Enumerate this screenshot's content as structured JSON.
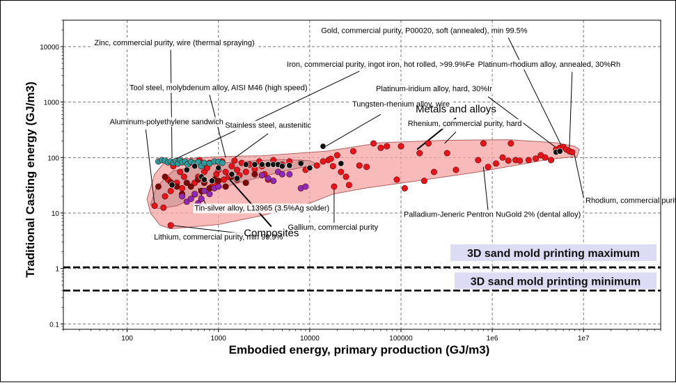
{
  "chart_data": {
    "type": "scatter",
    "xlabel": "Embodied energy, primary production (GJ/m3)",
    "ylabel": "Traditional Casting energy (GJ/m3)",
    "xscale": "log",
    "yscale": "log",
    "xlim": [
      20,
      70000000
    ],
    "ylim": [
      0.08,
      30000
    ],
    "x_ticks": [
      {
        "v": 100,
        "label": "100"
      },
      {
        "v": 1000,
        "label": "1000"
      },
      {
        "v": 10000,
        "label": "10000"
      },
      {
        "v": 100000,
        "label": "100000"
      },
      {
        "v": 1000000,
        "label": "1e6"
      },
      {
        "v": 10000000,
        "label": "1e7"
      }
    ],
    "y_ticks": [
      {
        "v": 0.1,
        "label": "0.1"
      },
      {
        "v": 1,
        "label": "1"
      },
      {
        "v": 10,
        "label": "10"
      },
      {
        "v": 100,
        "label": "100"
      },
      {
        "v": 1000,
        "label": "1000"
      },
      {
        "v": 10000,
        "label": "10000"
      }
    ],
    "grid": true,
    "colors": {
      "metal": "#e8141c",
      "dark_metal": "#7a0a0a",
      "teal": "#2a9d9d",
      "purple": "#8e2bb8",
      "black": "#111111",
      "envelope_fill": "#f7a3a3",
      "envelope_stroke": "#b06060",
      "composite_fill": "#c98f8f",
      "label_bg": "#dcdcf4"
    },
    "reference_lines": [
      {
        "label": "3D sand mold printing maximum",
        "y": 1.05
      },
      {
        "label": "3D sand mold printing minimum",
        "y": 0.4
      }
    ],
    "envelopes": [
      {
        "name": "Metals and alloys",
        "label_at": [
          400000,
          650
        ],
        "pointer_to": [
          150000,
          140
        ],
        "polygon": [
          [
            180,
            10
          ],
          [
            165,
            18
          ],
          [
            200,
            50
          ],
          [
            250,
            78
          ],
          [
            400,
            95
          ],
          [
            1200,
            105
          ],
          [
            3000,
            108
          ],
          [
            15000,
            130
          ],
          [
            60000,
            185
          ],
          [
            300000,
            205
          ],
          [
            1500000,
            210
          ],
          [
            5000000,
            185
          ],
          [
            8000000,
            160
          ],
          [
            9000000,
            140
          ],
          [
            8500000,
            105
          ],
          [
            4000000,
            92
          ],
          [
            700000,
            55
          ],
          [
            150000,
            38
          ],
          [
            40000,
            28
          ],
          [
            18000,
            22
          ],
          [
            10000,
            15
          ],
          [
            3000,
            9
          ],
          [
            1000,
            6.2
          ],
          [
            300,
            5.2
          ],
          [
            230,
            6
          ]
        ]
      },
      {
        "name": "Composites",
        "label_at": [
          3800,
          3.8
        ],
        "pointer_to": [
          1250,
          45
        ],
        "polygon": [
          [
            180,
            14
          ],
          [
            210,
            30
          ],
          [
            320,
            58
          ],
          [
            900,
            78
          ],
          [
            2500,
            88
          ],
          [
            5000,
            92
          ],
          [
            10000,
            88
          ],
          [
            12000,
            76
          ],
          [
            5000,
            56
          ],
          [
            2000,
            38
          ],
          [
            800,
            25
          ],
          [
            350,
            13.5
          ],
          [
            220,
            12
          ]
        ]
      }
    ],
    "series": [
      {
        "name": "",
        "color": "metal",
        "points": [
          [
            200,
            13.5
          ],
          [
            250,
            12.5
          ],
          [
            300,
            6
          ],
          [
            260,
            20
          ],
          [
            300,
            25
          ],
          [
            350,
            35
          ],
          [
            280,
            40
          ],
          [
            320,
            70
          ],
          [
            380,
            55
          ],
          [
            400,
            28
          ],
          [
            420,
            45
          ],
          [
            450,
            60
          ],
          [
            500,
            80
          ],
          [
            550,
            35
          ],
          [
            600,
            45
          ],
          [
            620,
            90
          ],
          [
            700,
            55
          ],
          [
            750,
            65
          ],
          [
            800,
            80
          ],
          [
            850,
            30
          ],
          [
            900,
            35
          ],
          [
            950,
            50
          ],
          [
            1000,
            60
          ],
          [
            1100,
            85
          ],
          [
            1150,
            40
          ],
          [
            1200,
            55
          ],
          [
            1300,
            45
          ],
          [
            1400,
            70
          ],
          [
            1500,
            88
          ],
          [
            1600,
            60
          ],
          [
            1700,
            48
          ],
          [
            1800,
            80
          ],
          [
            2000,
            55
          ],
          [
            2200,
            75
          ],
          [
            2500,
            62
          ],
          [
            2800,
            85
          ],
          [
            3000,
            70
          ],
          [
            3200,
            50
          ],
          [
            3500,
            40
          ],
          [
            4000,
            90
          ],
          [
            5000,
            75
          ],
          [
            6000,
            85
          ],
          [
            8000,
            80
          ],
          [
            9000,
            60
          ],
          [
            12000,
            72
          ],
          [
            14000,
            85
          ],
          [
            16000,
            90
          ],
          [
            17000,
            95
          ],
          [
            18000,
            70
          ],
          [
            20000,
            110
          ],
          [
            22000,
            55
          ],
          [
            25000,
            45
          ],
          [
            27000,
            32
          ],
          [
            18500,
            30
          ],
          [
            30000,
            130
          ],
          [
            35000,
            72
          ],
          [
            42000,
            68
          ],
          [
            50000,
            180
          ],
          [
            60000,
            150
          ],
          [
            70000,
            160
          ],
          [
            90000,
            40
          ],
          [
            100000,
            160
          ],
          [
            110000,
            28
          ],
          [
            160000,
            120
          ],
          [
            180000,
            38
          ],
          [
            200000,
            180
          ],
          [
            230000,
            55
          ],
          [
            320000,
            120
          ],
          [
            400000,
            60
          ],
          [
            700000,
            90
          ],
          [
            800000,
            180
          ],
          [
            900000,
            68
          ],
          [
            1100000,
            78
          ],
          [
            1300000,
            100
          ],
          [
            1500000,
            88
          ],
          [
            1600000,
            180
          ],
          [
            1800000,
            90
          ],
          [
            2000000,
            88
          ],
          [
            2500000,
            90
          ],
          [
            3000000,
            96
          ],
          [
            3400000,
            110
          ],
          [
            3800000,
            100
          ],
          [
            4400000,
            90
          ],
          [
            5000000,
            140
          ],
          [
            5500000,
            150
          ],
          [
            6000000,
            155
          ],
          [
            6500000,
            140
          ],
          [
            7000000,
            130
          ],
          [
            7500000,
            125
          ]
        ]
      },
      {
        "name": "",
        "color": "dark_metal",
        "points": [
          [
            220,
            30
          ],
          [
            260,
            45
          ],
          [
            300,
            36
          ],
          [
            350,
            30
          ],
          [
            400,
            22
          ],
          [
            450,
            35
          ],
          [
            500,
            30
          ],
          [
            550,
            22
          ],
          [
            600,
            40
          ],
          [
            650,
            25
          ],
          [
            700,
            35
          ],
          [
            800,
            28
          ],
          [
            900,
            40
          ],
          [
            1000,
            38
          ],
          [
            1200,
            30
          ],
          [
            1400,
            45
          ],
          [
            1600,
            40
          ],
          [
            2000,
            35
          ],
          [
            2500,
            50
          ],
          [
            3000,
            48
          ]
        ]
      },
      {
        "name": "",
        "color": "teal",
        "points": [
          [
            220,
            85
          ],
          [
            240,
            90
          ],
          [
            260,
            88
          ],
          [
            280,
            82
          ],
          [
            300,
            85
          ],
          [
            320,
            80
          ],
          [
            340,
            86
          ],
          [
            360,
            78
          ],
          [
            380,
            90
          ],
          [
            400,
            82
          ],
          [
            430,
            85
          ],
          [
            460,
            76
          ],
          [
            500,
            84
          ],
          [
            550,
            80
          ],
          [
            600,
            83
          ],
          [
            650,
            70
          ],
          [
            700,
            80
          ],
          [
            800,
            78
          ],
          [
            900,
            85
          ],
          [
            1000,
            84
          ],
          [
            1100,
            80
          ]
        ]
      },
      {
        "name": "",
        "color": "purple",
        "points": [
          [
            400,
            20
          ],
          [
            450,
            16
          ],
          [
            500,
            18
          ],
          [
            550,
            22
          ],
          [
            600,
            15
          ],
          [
            650,
            18
          ],
          [
            700,
            25
          ],
          [
            800,
            22
          ],
          [
            900,
            28
          ],
          [
            1000,
            30
          ],
          [
            3000,
            48
          ],
          [
            3500,
            42
          ],
          [
            4000,
            38
          ],
          [
            4500,
            55
          ],
          [
            5000,
            50
          ],
          [
            6000,
            50
          ],
          [
            8000,
            28
          ],
          [
            9000,
            30
          ]
        ]
      },
      {
        "name": "",
        "color": "black",
        "points": [
          [
            310,
            32
          ],
          [
            450,
            60
          ],
          [
            550,
            70
          ],
          [
            650,
            45
          ],
          [
            700,
            40
          ],
          [
            850,
            38
          ],
          [
            1000,
            65
          ],
          [
            1400,
            50
          ],
          [
            1600,
            42
          ],
          [
            2000,
            75
          ],
          [
            2500,
            75
          ],
          [
            3000,
            75
          ],
          [
            3500,
            75
          ],
          [
            4000,
            75
          ],
          [
            4500,
            75
          ],
          [
            5000,
            70
          ],
          [
            6000,
            72
          ],
          [
            8000,
            78
          ],
          [
            10000,
            65
          ],
          [
            14000,
            160
          ],
          [
            22000,
            78
          ],
          [
            5000000,
            125
          ],
          [
            5500000,
            130
          ]
        ]
      }
    ],
    "annotations": [
      {
        "text": "Zinc, commercial purity, wire (thermal spraying)",
        "at": [
          330,
          10600
        ],
        "anchor": "middle",
        "pointer": [
          [
            300,
            8800
          ],
          [
            310,
            100
          ]
        ]
      },
      {
        "text": "Gold, commercial purity, P00020, soft (annealed), min 99.5%",
        "at": [
          180000,
          17500
        ],
        "anchor": "middle",
        "pointer": [
          [
            1500000,
            14500
          ],
          [
            6000000,
            140
          ]
        ]
      },
      {
        "text": "Iron, commercial purity, ingot iron, hot rolled, >99.9%Fe",
        "at": [
          60000,
          4300
        ],
        "anchor": "middle",
        "pointer": [
          [
            35000,
            3600
          ],
          [
            320,
            90
          ]
        ]
      },
      {
        "text": "Platinum-rhodium alloy, annealed, 30%Rh",
        "at": [
          4200000,
          4350
        ],
        "anchor": "middle",
        "pointer": [
          [
            7500000,
            3500
          ],
          [
            7000000,
            150
          ]
        ]
      },
      {
        "text": "Tool steel, molybdenum alloy, AISI M46 (high speed)",
        "at": [
          1000,
          1650
        ],
        "anchor": "middle",
        "pointer": [
          [
            800,
            1350
          ],
          [
            1200,
            100
          ]
        ]
      },
      {
        "text": "Platinum-iridium alloy, hard, 30%Ir",
        "at": [
          230000,
          1570
        ],
        "anchor": "middle",
        "pointer": [
          [
            900000,
            1250
          ],
          [
            5500000,
            135
          ]
        ]
      },
      {
        "text": "Tungsten-rhenium alloy, wire",
        "at": [
          100000,
          830
        ],
        "anchor": "middle",
        "pointer": [
          [
            60000,
            600
          ],
          [
            15000,
            160
          ]
        ]
      },
      {
        "text": "Aluminum-polyethylene sandwich",
        "at": [
          270,
          400
        ],
        "anchor": "middle",
        "pointer": [
          [
            160,
            320
          ],
          [
            200,
            14
          ]
        ]
      },
      {
        "text": "Stainless steel, austenitic",
        "at": [
          3500,
          345
        ],
        "anchor": "middle",
        "pointer": [
          [
            3500,
            270
          ],
          [
            1400,
            90
          ]
        ]
      },
      {
        "text": "Rhenium, commercial purity, hard",
        "at": [
          500000,
          370
        ],
        "anchor": "middle",
        "pointer": [
          [
            400000,
            290
          ],
          [
            300000,
            180
          ]
        ]
      },
      {
        "text": "Tin-silver alloy, L13965 (3.5%Ag solder)",
        "at": [
          3000,
          11.1
        ],
        "anchor": "middle",
        "pointer": [
          [
            750,
            13
          ],
          [
            600,
            28
          ]
        ]
      },
      {
        "text": "Palladium-Jeneric Pentron NuGold 2% (dental alloy)",
        "at": [
          1000000,
          8.5
        ],
        "anchor": "middle",
        "pointer": [
          [
            900000,
            11
          ],
          [
            800000,
            68
          ]
        ]
      },
      {
        "text": "Rhodium, commercial purity, hard",
        "at": [
          10500000,
          15.2
        ],
        "anchor": "start",
        "pointer": [
          [
            10000000,
            19
          ],
          [
            7800000,
            130
          ]
        ]
      },
      {
        "text": "Gallium, commercial purity",
        "at": [
          18000,
          5.0
        ],
        "anchor": "middle",
        "pointer": [
          [
            18500,
            6.3
          ],
          [
            18500,
            30
          ]
        ]
      },
      {
        "text": "Lithium, commercial purity, min 99.9%",
        "at": [
          1000,
          3.35
        ],
        "anchor": "middle",
        "pointer": [
          [
            2000,
            4.2
          ],
          [
            300,
            6
          ]
        ]
      }
    ]
  }
}
